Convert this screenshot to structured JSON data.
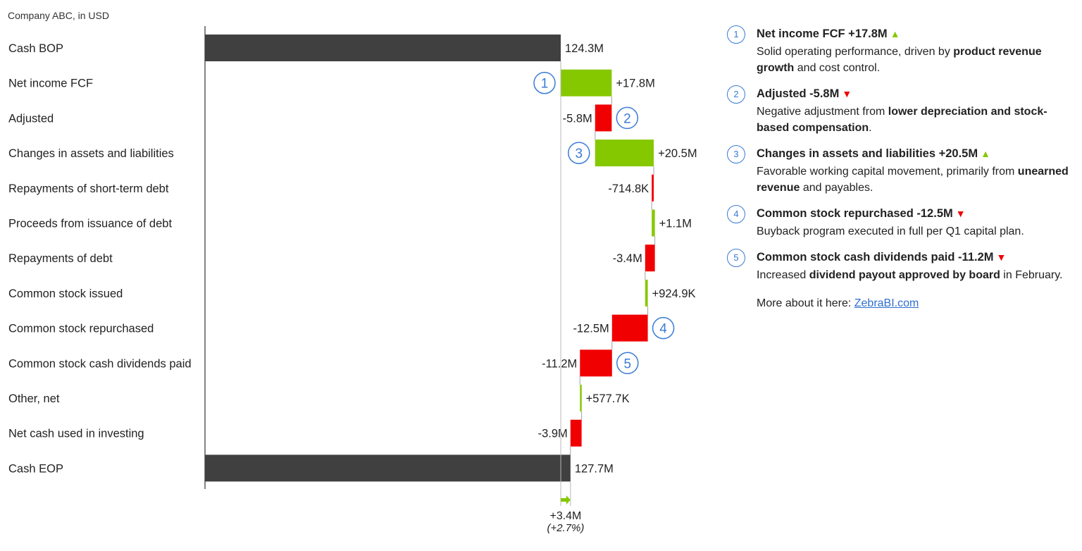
{
  "subtitle": "Company ABC, in USD",
  "colors": {
    "total": "#404040",
    "positive": "#86c800",
    "negative": "#f00000",
    "marker": "#3a7bd5",
    "connector": "#a0a0a0"
  },
  "chart_data": {
    "type": "waterfall",
    "orientation": "horizontal",
    "unit": "M",
    "categories": [
      "Cash BOP",
      "Net income FCF",
      "Adjusted",
      "Changes in assets and liabilities",
      "Repayments of short-term debt",
      "Proceeds from issuance of debt",
      "Repayments of debt",
      "Common stock issued",
      "Common stock repurchased",
      "Common stock cash dividends paid",
      "Other, net",
      "Net cash used in investing",
      "Cash EOP"
    ],
    "values": [
      124.3,
      17.8,
      -5.8,
      20.5,
      -0.7148,
      1.1,
      -3.4,
      0.9249,
      -12.5,
      -11.2,
      0.5777,
      -3.9,
      127.7
    ],
    "kinds": [
      "total",
      "delta",
      "delta",
      "delta",
      "delta",
      "delta",
      "delta",
      "delta",
      "delta",
      "delta",
      "delta",
      "delta",
      "total"
    ],
    "data_labels": [
      "124.3M",
      "+17.8M",
      "-5.8M",
      "+20.5M",
      "-714.8K",
      "+1.1M",
      "-3.4M",
      "+924.9K",
      "-12.5M",
      "-11.2M",
      "+577.7K",
      "-3.9M",
      "127.7M"
    ],
    "markers": [
      {
        "row": 1,
        "number": "1"
      },
      {
        "row": 2,
        "number": "2"
      },
      {
        "row": 3,
        "number": "3"
      },
      {
        "row": 8,
        "number": "4"
      },
      {
        "row": 9,
        "number": "5"
      }
    ],
    "difference": {
      "label": "+3.4M",
      "percent": "(+2.7%)"
    },
    "grid": false
  },
  "notes": [
    {
      "number": "1",
      "title": "Net income FCF +17.8M",
      "trend": "up",
      "body": [
        {
          "t": "Solid operating performance, driven by "
        },
        {
          "t": "product revenue growth",
          "b": true
        },
        {
          "t": " and cost control."
        }
      ]
    },
    {
      "number": "2",
      "title": "Adjusted -5.8M",
      "trend": "down",
      "body": [
        {
          "t": "Negative adjustment from "
        },
        {
          "t": "lower depreciation and stock-based compensation",
          "b": true
        },
        {
          "t": "."
        }
      ]
    },
    {
      "number": "3",
      "title": "Changes in assets and liabilities +20.5M",
      "trend": "up",
      "body": [
        {
          "t": "Favorable working capital movement, primarily from "
        },
        {
          "t": "unearned revenue",
          "b": true
        },
        {
          "t": " and payables."
        }
      ]
    },
    {
      "number": "4",
      "title": "Common stock repurchased -12.5M",
      "trend": "down",
      "body": [
        {
          "t": "Buyback program executed in full per Q1 capital plan."
        }
      ]
    },
    {
      "number": "5",
      "title": "Common stock cash dividends paid -11.2M",
      "trend": "down",
      "body": [
        {
          "t": "Increased "
        },
        {
          "t": "dividend payout approved by board",
          "b": true
        },
        {
          "t": " in February."
        }
      ]
    }
  ],
  "more": {
    "text": "More about it here: ",
    "link": "ZebraBI.com"
  }
}
